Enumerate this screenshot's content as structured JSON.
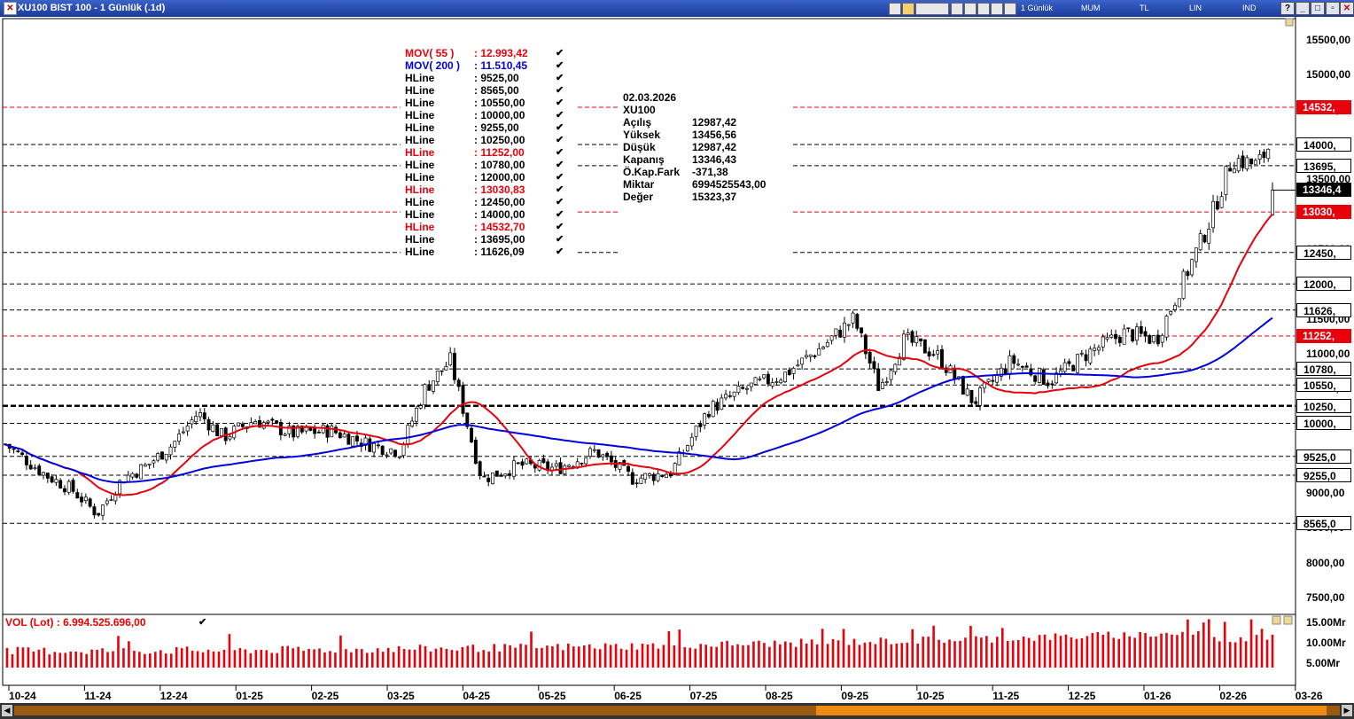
{
  "window": {
    "title": "XU100 BIST 100 - 1 Günlük (.1d)",
    "menu": [
      "1 Günlük",
      "MUM",
      "TL",
      "LIN",
      "IND"
    ]
  },
  "legend": [
    {
      "name": "MOV( 55 )",
      "value": ": 12.993,42",
      "color": "#e8000b"
    },
    {
      "name": "MOV( 200 )",
      "value": ": 11.510,45",
      "color": "#0000e0"
    },
    {
      "name": "HLine",
      "value": ": 9525,00",
      "color": "#000000"
    },
    {
      "name": "HLine",
      "value": ": 8565,00",
      "color": "#000000"
    },
    {
      "name": "HLine",
      "value": ": 10550,00",
      "color": "#000000"
    },
    {
      "name": "HLine",
      "value": ": 10000,00",
      "color": "#000000"
    },
    {
      "name": "HLine",
      "value": ": 9255,00",
      "color": "#000000"
    },
    {
      "name": "HLine",
      "value": ": 10250,00",
      "color": "#000000"
    },
    {
      "name": "HLine",
      "value": ": 11252,00",
      "color": "#e8000b"
    },
    {
      "name": "HLine",
      "value": ": 10780,00",
      "color": "#000000"
    },
    {
      "name": "HLine",
      "value": ": 12000,00",
      "color": "#000000"
    },
    {
      "name": "HLine",
      "value": ": 13030,83",
      "color": "#e8000b"
    },
    {
      "name": "HLine",
      "value": ": 12450,00",
      "color": "#000000"
    },
    {
      "name": "HLine",
      "value": ": 14000,00",
      "color": "#000000"
    },
    {
      "name": "HLine",
      "value": ": 14532,70",
      "color": "#e8000b"
    },
    {
      "name": "HLine",
      "value": ": 13695,00",
      "color": "#000000"
    },
    {
      "name": "HLine",
      "value": ": 11626,09",
      "color": "#000000"
    }
  ],
  "legend_check": "✔",
  "info": {
    "date": "02.03.2026",
    "symbol": "XU100",
    "rows": [
      {
        "k": "Açılış",
        "v": "12987,42"
      },
      {
        "k": "Yüksek",
        "v": "13456,56"
      },
      {
        "k": "Düşük",
        "v": "12987,42"
      },
      {
        "k": "Kapanış",
        "v": "13346,43"
      },
      {
        "k": "Ö.Kap.Fark",
        "v": "-371,38"
      },
      {
        "k": "Miktar",
        "v": "6994525543,00"
      },
      {
        "k": "Değer",
        "v": "15323,37"
      }
    ]
  },
  "hlines": [
    {
      "value": 14532.7,
      "label": "14532,",
      "style": "red"
    },
    {
      "value": 14000,
      "label": "14000,",
      "style": "black"
    },
    {
      "value": 13695,
      "label": "13695,",
      "style": "black"
    },
    {
      "value": 13030.83,
      "label": "13030,",
      "style": "red"
    },
    {
      "value": 12450,
      "label": "12450,",
      "style": "black"
    },
    {
      "value": 12000,
      "label": "12000,",
      "style": "black"
    },
    {
      "value": 11626.09,
      "label": "11626,",
      "style": "black"
    },
    {
      "value": 11252,
      "label": "11252,",
      "style": "red"
    },
    {
      "value": 10780,
      "label": "10780,",
      "style": "black"
    },
    {
      "value": 10550,
      "label": "10550,",
      "style": "black"
    },
    {
      "value": 10250,
      "label": "10250,",
      "style": "black",
      "thick": true
    },
    {
      "value": 10000,
      "label": "10000,",
      "style": "black"
    },
    {
      "value": 9525,
      "label": "9525,0",
      "style": "black"
    },
    {
      "value": 9255,
      "label": "9255,0",
      "style": "black"
    },
    {
      "value": 8565,
      "label": "8565,0",
      "style": "black"
    }
  ],
  "current_price": {
    "value": 13346.43,
    "label": "13346,4"
  },
  "price_axis": [
    "15500,00",
    "15000,00",
    "14500,00",
    "14000,00",
    "13500,00",
    "13000,00",
    "12500,00",
    "12000,00",
    "11500,00",
    "11000,00",
    "10500,00",
    "10000,00",
    "9500,00",
    "9000,00",
    "8500,00",
    "8000,00",
    "7500,00"
  ],
  "volume": {
    "title": "VOL (Lot)   : 6.994.525.696,00",
    "axis": [
      "15.00Mr",
      "10.00Mr",
      "5.00Mr"
    ],
    "check": "✔"
  },
  "months": [
    "10-24",
    "11-24",
    "12-24",
    "01-25",
    "02-25",
    "03-25",
    "04-25",
    "05-25",
    "06-25",
    "07-25",
    "08-25",
    "09-25",
    "10-25",
    "11-25",
    "12-25",
    "01-26",
    "02-26",
    "03-26"
  ],
  "chart_data": {
    "type": "candlestick",
    "title": "XU100 BIST 100 - 1 Günlük (.1d)",
    "ylim": [
      7200,
      15800
    ],
    "series": [
      {
        "name": "MOV( 55 )",
        "color": "#e8000b",
        "last": 12993.42
      },
      {
        "name": "MOV( 200 )",
        "color": "#0000e0",
        "last": 11510.45
      },
      {
        "name": "VOL (Lot)",
        "color": "#e8000b",
        "last": 6994525696
      }
    ],
    "price_keypoints": [
      [
        "10-24",
        9700
      ],
      [
        "10-24",
        9250
      ],
      [
        "10-24",
        9050
      ],
      [
        "11-24",
        8700
      ],
      [
        "11-24",
        9200
      ],
      [
        "11-24",
        9400
      ],
      [
        "12-24",
        9700
      ],
      [
        "12-24",
        10150
      ],
      [
        "12-24",
        9800
      ],
      [
        "01-25",
        10050
      ],
      [
        "01-25",
        9850
      ],
      [
        "02-25",
        9900
      ],
      [
        "02-25",
        9700
      ],
      [
        "03-25",
        9600
      ],
      [
        "03-25",
        10500
      ],
      [
        "03-25",
        10900
      ],
      [
        "04-25",
        9200
      ],
      [
        "04-25",
        9400
      ],
      [
        "05-25",
        9350
      ],
      [
        "05-25",
        9600
      ],
      [
        "06-25",
        9200
      ],
      [
        "06-25",
        9300
      ],
      [
        "07-25",
        10200
      ],
      [
        "07-25",
        10500
      ],
      [
        "08-25",
        10700
      ],
      [
        "08-25",
        11100
      ],
      [
        "09-25",
        11500
      ],
      [
        "09-25",
        10500
      ],
      [
        "09-25",
        11200
      ],
      [
        "10-25",
        11000
      ],
      [
        "10-25",
        10300
      ],
      [
        "11-25",
        10900
      ],
      [
        "11-25",
        10600
      ],
      [
        "12-25",
        11000
      ],
      [
        "12-25",
        11300
      ],
      [
        "01-26",
        11200
      ],
      [
        "01-26",
        12000
      ],
      [
        "01-26",
        12800
      ],
      [
        "02-26",
        13800
      ],
      [
        "02-26",
        13700
      ],
      [
        "02-26",
        14300
      ],
      [
        "03-26",
        13346.43
      ]
    ],
    "last_candle": {
      "date": "02.03.2026",
      "open": 12987.42,
      "high": 13456.56,
      "low": 12987.42,
      "close": 13346.43
    }
  }
}
